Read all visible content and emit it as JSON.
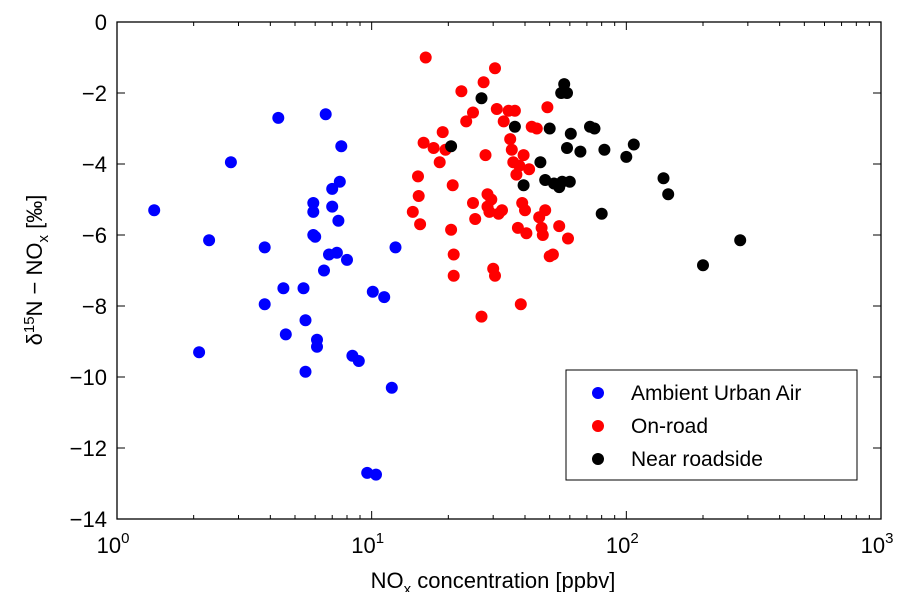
{
  "chart_data": {
    "type": "scatter",
    "title": "",
    "xlabel": "NO<sub>x</sub> concentration [ppbv]",
    "xlabel_parts": {
      "main": "NO",
      "sub": "x",
      "rest": " concentration [ppbv]"
    },
    "ylabel_parts": {
      "delta": "δ",
      "sup": "15",
      "mid": "N − NO",
      "sub": "x",
      "rest": " [‰]"
    },
    "x_scale": "log",
    "xlim": [
      1,
      1000
    ],
    "ylim": [
      -14,
      0
    ],
    "x_ticks": [
      1,
      10,
      100,
      1000
    ],
    "x_tick_labels": [
      {
        "base": "10",
        "exp": "0"
      },
      {
        "base": "10",
        "exp": "1"
      },
      {
        "base": "10",
        "exp": "2"
      },
      {
        "base": "10",
        "exp": "3"
      }
    ],
    "y_ticks": [
      0,
      -2,
      -4,
      -6,
      -8,
      -10,
      -12,
      -14
    ],
    "y_tick_labels": [
      "0",
      "−2",
      "−4",
      "−6",
      "−8",
      "−10",
      "−12",
      "−14"
    ],
    "grid": false,
    "legend_position": "bottom-right",
    "series": [
      {
        "name": "Ambient Urban Air",
        "color": "#0000ff",
        "points": [
          [
            1.4,
            -5.3
          ],
          [
            2.1,
            -9.3
          ],
          [
            2.3,
            -6.15
          ],
          [
            2.8,
            -3.95
          ],
          [
            3.8,
            -6.35
          ],
          [
            3.8,
            -7.95
          ],
          [
            4.3,
            -2.7
          ],
          [
            4.5,
            -7.5
          ],
          [
            4.6,
            -8.8
          ],
          [
            5.4,
            -7.5
          ],
          [
            5.5,
            -8.4
          ],
          [
            5.5,
            -9.85
          ],
          [
            5.9,
            -5.1
          ],
          [
            5.9,
            -5.35
          ],
          [
            5.9,
            -6.0
          ],
          [
            6.0,
            -6.05
          ],
          [
            6.1,
            -8.95
          ],
          [
            6.1,
            -9.15
          ],
          [
            6.5,
            -7.0
          ],
          [
            6.6,
            -2.6
          ],
          [
            6.8,
            -6.55
          ],
          [
            7.0,
            -4.7
          ],
          [
            7.0,
            -5.2
          ],
          [
            7.3,
            -6.5
          ],
          [
            7.4,
            -5.6
          ],
          [
            7.5,
            -4.5
          ],
          [
            7.6,
            -3.5
          ],
          [
            8.0,
            -6.7
          ],
          [
            8.4,
            -9.4
          ],
          [
            8.9,
            -9.55
          ],
          [
            9.6,
            -12.7
          ],
          [
            10.1,
            -7.6
          ],
          [
            10.4,
            -12.75
          ],
          [
            11.2,
            -7.75
          ],
          [
            12.0,
            -10.3
          ],
          [
            12.4,
            -6.35
          ]
        ]
      },
      {
        "name": "On-road",
        "color": "#ff0000",
        "points": [
          [
            14.5,
            -5.35
          ],
          [
            15.2,
            -4.35
          ],
          [
            15.3,
            -4.9
          ],
          [
            15.5,
            -5.7
          ],
          [
            16.0,
            -3.4
          ],
          [
            16.3,
            -1.0
          ],
          [
            17.5,
            -3.55
          ],
          [
            18.5,
            -3.95
          ],
          [
            19.0,
            -3.1
          ],
          [
            19.5,
            -3.6
          ],
          [
            20.5,
            -5.85
          ],
          [
            20.8,
            -4.6
          ],
          [
            21.0,
            -6.55
          ],
          [
            21.0,
            -7.15
          ],
          [
            22.5,
            -1.95
          ],
          [
            23.5,
            -2.8
          ],
          [
            25.0,
            -2.55
          ],
          [
            25.0,
            -5.1
          ],
          [
            25.5,
            -5.55
          ],
          [
            27.0,
            -8.3
          ],
          [
            27.5,
            -1.7
          ],
          [
            28.0,
            -3.75
          ],
          [
            28.5,
            -4.85
          ],
          [
            28.5,
            -5.2
          ],
          [
            29.0,
            -5.35
          ],
          [
            29.5,
            -5.0
          ],
          [
            30.0,
            -6.95
          ],
          [
            30.5,
            -7.15
          ],
          [
            30.5,
            -1.3
          ],
          [
            31.0,
            -2.45
          ],
          [
            31.5,
            -5.4
          ],
          [
            32.5,
            -5.3
          ],
          [
            33.0,
            -2.8
          ],
          [
            34.5,
            -2.5
          ],
          [
            35.0,
            -3.3
          ],
          [
            35.5,
            -3.6
          ],
          [
            36.0,
            -3.95
          ],
          [
            36.5,
            -2.5
          ],
          [
            37.0,
            -4.3
          ],
          [
            37.5,
            -5.8
          ],
          [
            38.0,
            -4.05
          ],
          [
            38.5,
            -7.95
          ],
          [
            39.0,
            -5.1
          ],
          [
            39.5,
            -3.75
          ],
          [
            40.0,
            -5.3
          ],
          [
            40.5,
            -5.95
          ],
          [
            41.5,
            -4.15
          ],
          [
            42.5,
            -2.95
          ],
          [
            44.5,
            -3.0
          ],
          [
            45.5,
            -5.5
          ],
          [
            46.5,
            -5.8
          ],
          [
            47.0,
            -6.0
          ],
          [
            48.0,
            -5.3
          ],
          [
            49.0,
            -2.4
          ],
          [
            50.0,
            -6.6
          ],
          [
            51.5,
            -6.55
          ],
          [
            54.5,
            -5.75
          ],
          [
            59.0,
            -6.1
          ]
        ]
      },
      {
        "name": "Near roadside",
        "color": "#000000",
        "points": [
          [
            20.5,
            -3.5
          ],
          [
            27.0,
            -2.15
          ],
          [
            36.5,
            -2.95
          ],
          [
            39.5,
            -4.6
          ],
          [
            46.0,
            -3.95
          ],
          [
            48.0,
            -4.45
          ],
          [
            50.0,
            -3.0
          ],
          [
            52.0,
            -4.55
          ],
          [
            54.5,
            -4.65
          ],
          [
            56.0,
            -4.5
          ],
          [
            55.5,
            -2.0
          ],
          [
            57.0,
            -1.75
          ],
          [
            58.5,
            -2.0
          ],
          [
            58.5,
            -3.55
          ],
          [
            60.0,
            -4.5
          ],
          [
            60.5,
            -3.15
          ],
          [
            66.0,
            -3.65
          ],
          [
            72.0,
            -2.95
          ],
          [
            75.0,
            -3.0
          ],
          [
            80.0,
            -5.4
          ],
          [
            82.0,
            -3.6
          ],
          [
            100.0,
            -3.8
          ],
          [
            107.0,
            -3.45
          ],
          [
            140.0,
            -4.4
          ],
          [
            146.0,
            -4.85
          ],
          [
            200.0,
            -6.85
          ],
          [
            280.0,
            -6.15
          ]
        ]
      }
    ]
  }
}
